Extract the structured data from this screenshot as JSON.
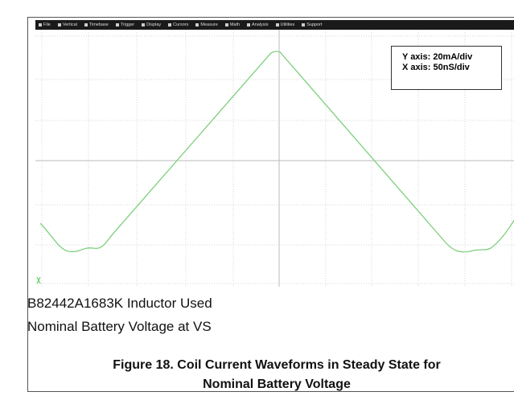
{
  "scope": {
    "menu": [
      "File",
      "Vertical",
      "Timebase",
      "Trigger",
      "Display",
      "Cursors",
      "Measure",
      "Math",
      "Analysis",
      "Utilities",
      "Support"
    ],
    "annotation": [
      "Y axis: 20mA/div",
      "X axis: 50nS/div"
    ]
  },
  "notes": [
    "B82442A1683K Inductor Used",
    "Nominal Battery Voltage at VS"
  ],
  "caption": [
    "Figure 18. Coil Current Waveforms in Steady State for",
    "Nominal Battery Voltage"
  ]
}
